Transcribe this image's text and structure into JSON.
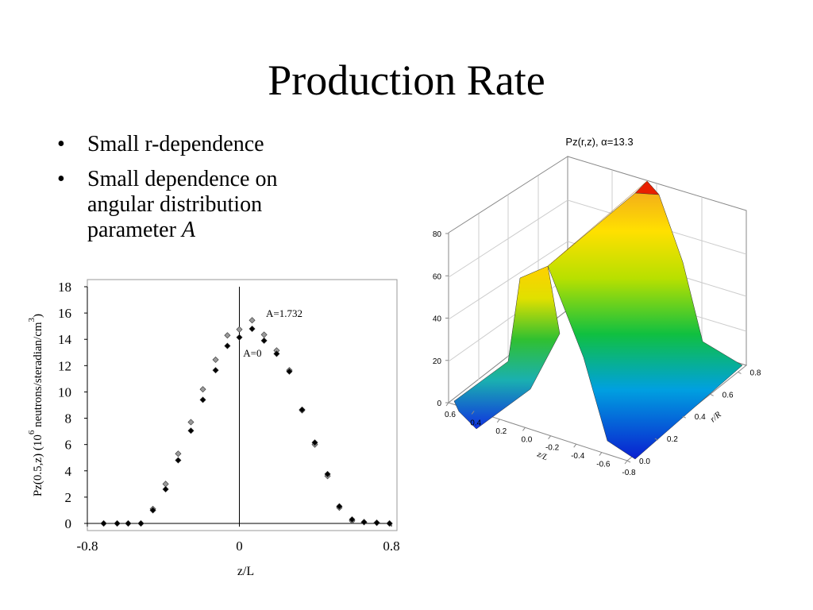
{
  "title": "Production Rate",
  "bullets": [
    [
      "Small r-dependence"
    ],
    [
      "Small dependence on angular distribution parameter ",
      "A"
    ]
  ],
  "chart_data": [
    {
      "type": "scatter",
      "xlabel": "z/L",
      "ylabel": [
        "Pz(0.5,z) (10",
        "6",
        " neutrons/steradian/cm",
        "3",
        ")"
      ],
      "xlim": [
        -0.8,
        0.8
      ],
      "ylim": [
        0,
        18
      ],
      "xticks": [
        -0.8,
        0,
        0.8
      ],
      "yticks": [
        0,
        2,
        4,
        6,
        8,
        10,
        12,
        14,
        16,
        18
      ],
      "annotations": [
        {
          "text": "A=1.732",
          "x": 0.14,
          "y": 16
        },
        {
          "text": "A=0",
          "x": 0.02,
          "y": 13
        }
      ],
      "x": [
        -0.714,
        -0.643,
        -0.585,
        -0.518,
        -0.455,
        -0.388,
        -0.322,
        -0.255,
        -0.192,
        -0.125,
        -0.063,
        0,
        0.067,
        0.13,
        0.196,
        0.263,
        0.33,
        0.397,
        0.464,
        0.526,
        0.593,
        0.656,
        0.723,
        0.79
      ],
      "series": [
        {
          "name": "A=1.732",
          "color": "#9a9a9a",
          "values": [
            0,
            0,
            0,
            0,
            1.1,
            3.0,
            5.3,
            7.7,
            10.2,
            12.45,
            14.3,
            14.75,
            15.45,
            14.35,
            13.15,
            11.65,
            8.6,
            6.0,
            3.6,
            1.2,
            0.2,
            0.1,
            0.05,
            0
          ]
        },
        {
          "name": "A=0",
          "color": "#000000",
          "values": [
            0,
            0,
            0,
            0,
            1.0,
            2.6,
            4.8,
            7.05,
            9.4,
            11.65,
            13.5,
            14.15,
            14.8,
            13.9,
            12.9,
            11.55,
            8.65,
            6.15,
            3.75,
            1.3,
            0.3,
            0.1,
            0.05,
            0
          ]
        }
      ]
    },
    {
      "type": "surface",
      "title": "Pz(r,z), α=13.3",
      "xlabel": "z/L",
      "ylabel": "r/R",
      "zlim": [
        0,
        80
      ],
      "zticks": [
        0,
        20,
        40,
        60,
        80
      ],
      "xticks": [
        0.6,
        0.4,
        0.2,
        {
          "value": 0,
          "label": "0.0"
        },
        -0.2,
        -0.4,
        -0.6,
        -0.8
      ],
      "yticks": [
        {
          "value": 0,
          "label": "0.0"
        },
        0.2,
        0.4,
        0.6,
        0.8
      ]
    }
  ]
}
